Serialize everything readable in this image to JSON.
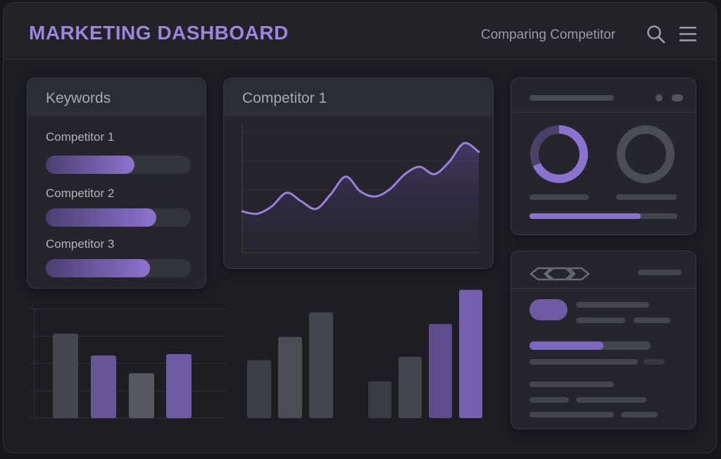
{
  "header": {
    "title": "MARKETING DASHBOARD",
    "subtitle": "Comparing Competitor"
  },
  "keywords_card": {
    "title": "Keywords",
    "items": [
      {
        "label": "Competitor 1",
        "progress": 0.61
      },
      {
        "label": "Competitor 2",
        "progress": 0.76
      },
      {
        "label": "Competitor 3",
        "progress": 0.72
      }
    ]
  },
  "line_card": {
    "title": "Competitor 1"
  },
  "colors": {
    "accent": "#8e73d0",
    "title": "#9b86de",
    "gray_bar": "#4a4a52",
    "purple_bar": "#6f5aa6"
  },
  "chart_data": [
    {
      "type": "line",
      "title": "Competitor 1",
      "x": [
        0,
        1,
        2,
        3,
        4,
        5,
        6,
        7,
        8,
        9,
        10,
        11,
        12,
        13,
        14,
        15,
        16
      ],
      "series": [
        {
          "values": [
            30,
            28,
            34,
            45,
            38,
            32,
            44,
            58,
            46,
            42,
            48,
            60,
            66,
            60,
            70,
            85,
            78
          ]
        }
      ],
      "ylim": [
        0,
        100
      ],
      "grid": true
    },
    {
      "type": "bar",
      "series": [
        {
          "values": [
            62,
            46,
            33,
            47
          ]
        }
      ],
      "ylim": [
        0,
        80
      ],
      "grid": true
    },
    {
      "type": "bar",
      "series": [
        {
          "values": [
            45,
            63,
            82
          ]
        }
      ],
      "ylim": [
        0,
        90
      ],
      "grid": false
    },
    {
      "type": "bar",
      "series": [
        {
          "values": [
            27,
            45,
            69,
            94
          ]
        }
      ],
      "ylim": [
        0,
        100
      ],
      "grid": false
    }
  ],
  "widgets": {
    "donut_left_fraction": 0.68,
    "progress_fraction": 0.75
  }
}
